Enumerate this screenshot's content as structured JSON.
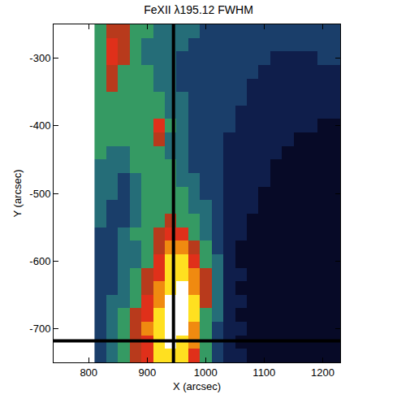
{
  "chart_data": {
    "type": "heatmap",
    "title": "FeXII λ195.12 FWHM",
    "x_label": "X (arcsec)",
    "y_label": "Y (arcsec)",
    "xlim": [
      740,
      1230
    ],
    "ylim": [
      -750,
      -250
    ],
    "xticks": [
      800,
      900,
      1000,
      1100,
      1200
    ],
    "yticks": [
      -300,
      -400,
      -500,
      -600,
      -700
    ],
    "grid": false,
    "zlim": [
      0,
      10
    ],
    "crosshair": {
      "x": 945,
      "y": -718
    },
    "x": [
      820,
      840,
      860,
      880,
      900,
      920,
      940,
      960,
      980,
      1000,
      1020,
      1040,
      1060,
      1080,
      1100,
      1120,
      1140,
      1160,
      1180,
      1200,
      1220
    ],
    "y": [
      -740,
      -720,
      -700,
      -680,
      -660,
      -640,
      -620,
      -600,
      -580,
      -560,
      -540,
      -520,
      -500,
      -480,
      -460,
      -440,
      -420,
      -400,
      -380,
      -360,
      -340,
      -320,
      -300,
      -280,
      -260
    ],
    "cells": [
      [
        3,
        4,
        5,
        6,
        7,
        9,
        9,
        9,
        7,
        5,
        3,
        2,
        2,
        1,
        1,
        1,
        1,
        1,
        1,
        1,
        1
      ],
      [
        3,
        4,
        5,
        6,
        7,
        9,
        10,
        9,
        8,
        5,
        3,
        2,
        1,
        1,
        1,
        1,
        1,
        1,
        1,
        1,
        1
      ],
      [
        3,
        4,
        5,
        6,
        8,
        9,
        10,
        10,
        8,
        5,
        3,
        2,
        2,
        1,
        1,
        1,
        1,
        1,
        1,
        1,
        1
      ],
      [
        3,
        4,
        5,
        6,
        7,
        9,
        10,
        10,
        9,
        5,
        4,
        2,
        1,
        1,
        1,
        1,
        1,
        1,
        1,
        1,
        1
      ],
      [
        3,
        4,
        4,
        5,
        7,
        8,
        10,
        10,
        9,
        6,
        4,
        2,
        2,
        1,
        1,
        1,
        1,
        1,
        1,
        1,
        1
      ],
      [
        3,
        3,
        4,
        5,
        6,
        8,
        9,
        10,
        8,
        6,
        4,
        2,
        1,
        1,
        1,
        1,
        1,
        1,
        1,
        1,
        1
      ],
      [
        3,
        3,
        4,
        5,
        6,
        7,
        9,
        9,
        8,
        6,
        4,
        2,
        2,
        1,
        1,
        1,
        1,
        1,
        1,
        1,
        1
      ],
      [
        3,
        3,
        4,
        4,
        5,
        7,
        9,
        9,
        7,
        5,
        4,
        2,
        1,
        1,
        1,
        1,
        1,
        1,
        1,
        1,
        1
      ],
      [
        3,
        3,
        4,
        4,
        5,
        6,
        8,
        8,
        6,
        5,
        3,
        2,
        1,
        1,
        1,
        1,
        1,
        1,
        1,
        1,
        1
      ],
      [
        3,
        3,
        4,
        5,
        5,
        6,
        7,
        7,
        5,
        4,
        3,
        2,
        2,
        1,
        1,
        1,
        1,
        1,
        1,
        1,
        1
      ],
      [
        4,
        3,
        3,
        4,
        5,
        5,
        6,
        5,
        5,
        4,
        3,
        2,
        2,
        1,
        1,
        1,
        1,
        1,
        1,
        1,
        1
      ],
      [
        4,
        3,
        3,
        4,
        5,
        5,
        5,
        5,
        4,
        4,
        3,
        2,
        2,
        2,
        1,
        1,
        1,
        1,
        1,
        1,
        1
      ],
      [
        4,
        4,
        3,
        4,
        5,
        5,
        5,
        5,
        4,
        3,
        3,
        2,
        2,
        2,
        1,
        1,
        1,
        1,
        1,
        1,
        1
      ],
      [
        4,
        4,
        3,
        4,
        5,
        5,
        5,
        4,
        4,
        3,
        3,
        2,
        2,
        2,
        2,
        1,
        1,
        1,
        1,
        1,
        1
      ],
      [
        4,
        4,
        4,
        5,
        5,
        5,
        5,
        4,
        3,
        3,
        3,
        2,
        2,
        2,
        2,
        1,
        1,
        1,
        1,
        1,
        1
      ],
      [
        5,
        4,
        4,
        5,
        5,
        5,
        4,
        4,
        3,
        3,
        3,
        2,
        2,
        2,
        2,
        2,
        1,
        1,
        1,
        1,
        1
      ],
      [
        5,
        5,
        5,
        5,
        5,
        6,
        4,
        4,
        3,
        3,
        3,
        2,
        2,
        2,
        2,
        2,
        2,
        1,
        1,
        1,
        1
      ],
      [
        5,
        5,
        5,
        5,
        5,
        7,
        5,
        4,
        3,
        3,
        3,
        3,
        2,
        2,
        2,
        2,
        2,
        2,
        2,
        1,
        1
      ],
      [
        5,
        5,
        5,
        5,
        5,
        5,
        4,
        4,
        3,
        3,
        3,
        3,
        2,
        2,
        2,
        2,
        2,
        2,
        2,
        2,
        2
      ],
      [
        5,
        5,
        5,
        5,
        5,
        5,
        4,
        4,
        3,
        3,
        3,
        3,
        3,
        2,
        2,
        2,
        2,
        2,
        2,
        2,
        2
      ],
      [
        5,
        6,
        5,
        5,
        5,
        4,
        4,
        3,
        3,
        3,
        3,
        3,
        3,
        2,
        2,
        2,
        2,
        2,
        2,
        2,
        2
      ],
      [
        5,
        6,
        5,
        5,
        5,
        4,
        4,
        3,
        3,
        3,
        3,
        3,
        3,
        3,
        2,
        2,
        2,
        2,
        2,
        2,
        2
      ],
      [
        5,
        7,
        6,
        5,
        4,
        4,
        4,
        3,
        3,
        3,
        3,
        3,
        3,
        3,
        3,
        2,
        2,
        2,
        2,
        3,
        3
      ],
      [
        5,
        7,
        6,
        5,
        4,
        4,
        4,
        4,
        3,
        3,
        3,
        3,
        3,
        3,
        3,
        3,
        3,
        3,
        3,
        3,
        3
      ],
      [
        5,
        6,
        6,
        5,
        5,
        4,
        4,
        4,
        4,
        3,
        3,
        3,
        3,
        3,
        3,
        3,
        3,
        3,
        3,
        3,
        3
      ]
    ]
  }
}
